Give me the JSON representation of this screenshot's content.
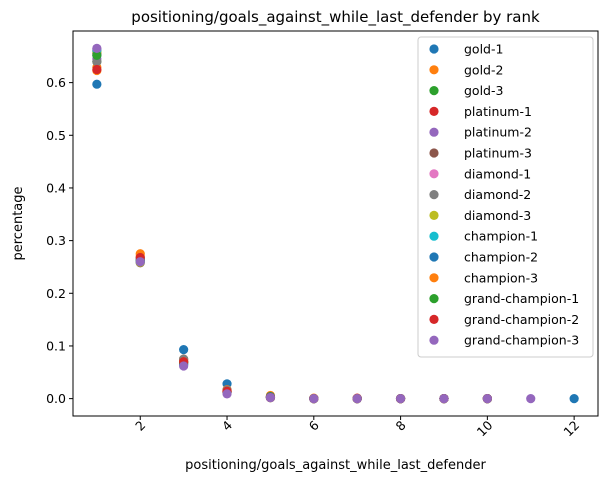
{
  "chart_data": {
    "type": "scatter",
    "title": "positioning/goals_against_while_last_defender by rank",
    "xlabel": "positioning/goals_against_while_last_defender",
    "ylabel": "percentage",
    "xlim": [
      0.45,
      12.55
    ],
    "ylim": [
      -0.033,
      0.698
    ],
    "xticks": [
      2,
      4,
      6,
      8,
      10,
      12
    ],
    "yticks": [
      0.0,
      0.1,
      0.2,
      0.3,
      0.4,
      0.5,
      0.6
    ],
    "xtick_rotation": 45,
    "grid": false,
    "legend_position": "top-right",
    "series": [
      {
        "name": "gold-1",
        "color": "#1f77b4",
        "points": [
          [
            1,
            0.597
          ],
          [
            2,
            0.268
          ],
          [
            3,
            0.093
          ],
          [
            4,
            0.028
          ],
          [
            5,
            0.004
          ],
          [
            6,
            0.0
          ],
          [
            7,
            0.0
          ],
          [
            8,
            0.0
          ],
          [
            9,
            0.0
          ],
          [
            10,
            0.0
          ]
        ]
      },
      {
        "name": "gold-2",
        "color": "#ff7f0e",
        "points": [
          [
            1,
            0.629
          ],
          [
            2,
            0.275
          ],
          [
            3,
            0.075
          ],
          [
            4,
            0.017
          ],
          [
            5,
            0.006
          ],
          [
            6,
            0.001
          ],
          [
            7,
            0.0
          ],
          [
            8,
            0.0
          ],
          [
            9,
            0.0
          ],
          [
            10,
            0.0
          ]
        ]
      },
      {
        "name": "gold-3",
        "color": "#2ca02c",
        "points": [
          [
            1,
            0.64
          ],
          [
            2,
            0.262
          ],
          [
            3,
            0.07
          ],
          [
            4,
            0.014
          ],
          [
            5,
            0.004
          ],
          [
            6,
            0.0
          ],
          [
            7,
            0.0
          ],
          [
            8,
            0.0
          ],
          [
            9,
            0.0
          ],
          [
            10,
            0.0
          ]
        ]
      },
      {
        "name": "platinum-1",
        "color": "#d62728",
        "points": [
          [
            1,
            0.655
          ],
          [
            2,
            0.26
          ],
          [
            3,
            0.068
          ],
          [
            4,
            0.013
          ],
          [
            5,
            0.003
          ],
          [
            6,
            0.0
          ],
          [
            7,
            0.001
          ],
          [
            8,
            0.0
          ],
          [
            9,
            0.0
          ],
          [
            10,
            0.0
          ]
        ]
      },
      {
        "name": "platinum-2",
        "color": "#9467bd",
        "points": [
          [
            1,
            0.645
          ],
          [
            2,
            0.262
          ],
          [
            3,
            0.07
          ],
          [
            4,
            0.015
          ],
          [
            5,
            0.003
          ],
          [
            6,
            0.0
          ],
          [
            7,
            0.0
          ],
          [
            8,
            0.0
          ],
          [
            9,
            0.0
          ],
          [
            10,
            0.0
          ]
        ]
      },
      {
        "name": "platinum-3",
        "color": "#8c564b",
        "points": [
          [
            1,
            0.66
          ],
          [
            2,
            0.258
          ],
          [
            3,
            0.072
          ],
          [
            4,
            0.012
          ],
          [
            5,
            0.003
          ],
          [
            6,
            0.0
          ],
          [
            7,
            0.0
          ],
          [
            8,
            0.0
          ],
          [
            9,
            0.0
          ],
          [
            10,
            0.0
          ]
        ]
      },
      {
        "name": "diamond-1",
        "color": "#e377c2",
        "points": [
          [
            1,
            0.664
          ],
          [
            2,
            0.261
          ],
          [
            3,
            0.065
          ],
          [
            4,
            0.011
          ],
          [
            5,
            0.002
          ],
          [
            6,
            0.0
          ],
          [
            7,
            0.0
          ],
          [
            8,
            0.0
          ],
          [
            9,
            0.0
          ],
          [
            10,
            0.0
          ]
        ]
      },
      {
        "name": "diamond-2",
        "color": "#7f7f7f",
        "points": [
          [
            1,
            0.64
          ],
          [
            2,
            0.26
          ],
          [
            3,
            0.075
          ],
          [
            4,
            0.016
          ],
          [
            5,
            0.003
          ],
          [
            6,
            0.0
          ],
          [
            7,
            0.0
          ],
          [
            8,
            0.0
          ],
          [
            9,
            0.0
          ],
          [
            10,
            0.0
          ]
        ]
      },
      {
        "name": "diamond-3",
        "color": "#bcbd22",
        "points": [
          [
            1,
            0.658
          ],
          [
            2,
            0.259
          ],
          [
            3,
            0.068
          ],
          [
            4,
            0.013
          ],
          [
            5,
            0.002
          ],
          [
            6,
            0.0
          ],
          [
            7,
            0.0
          ],
          [
            8,
            0.0
          ],
          [
            9,
            0.0
          ],
          [
            10,
            0.0
          ]
        ]
      },
      {
        "name": "champion-1",
        "color": "#17becf",
        "points": [
          [
            1,
            0.662
          ],
          [
            2,
            0.26
          ],
          [
            3,
            0.064
          ],
          [
            4,
            0.012
          ],
          [
            5,
            0.002
          ],
          [
            6,
            0.0
          ],
          [
            7,
            0.0
          ],
          [
            8,
            0.0
          ],
          [
            9,
            0.0
          ],
          [
            10,
            0.0
          ]
        ]
      },
      {
        "name": "champion-2",
        "color": "#1f77b4",
        "points": [
          [
            1,
            0.652
          ],
          [
            2,
            0.266
          ],
          [
            3,
            0.066
          ],
          [
            4,
            0.012
          ],
          [
            5,
            0.003
          ],
          [
            6,
            0.0
          ],
          [
            7,
            0.0
          ],
          [
            8,
            0.0
          ],
          [
            9,
            0.0
          ],
          [
            10,
            0.0
          ],
          [
            12,
            0.0
          ]
        ]
      },
      {
        "name": "champion-3",
        "color": "#ff7f0e",
        "points": [
          [
            1,
            0.623
          ],
          [
            2,
            0.27
          ],
          [
            3,
            0.07
          ],
          [
            4,
            0.013
          ],
          [
            5,
            0.002
          ],
          [
            6,
            0.0
          ],
          [
            7,
            0.0
          ],
          [
            8,
            0.0
          ],
          [
            9,
            0.0
          ],
          [
            10,
            0.0
          ]
        ]
      },
      {
        "name": "grand-champion-1",
        "color": "#2ca02c",
        "points": [
          [
            1,
            0.652
          ],
          [
            2,
            0.262
          ],
          [
            3,
            0.068
          ],
          [
            4,
            0.012
          ],
          [
            5,
            0.002
          ],
          [
            6,
            0.0
          ],
          [
            7,
            0.0
          ],
          [
            8,
            0.0
          ],
          [
            9,
            0.0
          ],
          [
            10,
            0.0
          ]
        ]
      },
      {
        "name": "grand-champion-2",
        "color": "#d62728",
        "points": [
          [
            1,
            0.625
          ],
          [
            2,
            0.268
          ],
          [
            3,
            0.07
          ],
          [
            4,
            0.014
          ],
          [
            5,
            0.002
          ],
          [
            6,
            0.0
          ],
          [
            7,
            0.0
          ],
          [
            8,
            0.0
          ],
          [
            9,
            0.0
          ],
          [
            10,
            0.0
          ]
        ]
      },
      {
        "name": "grand-champion-3",
        "color": "#9467bd",
        "points": [
          [
            1,
            0.665
          ],
          [
            2,
            0.26
          ],
          [
            3,
            0.062
          ],
          [
            4,
            0.009
          ],
          [
            5,
            0.002
          ],
          [
            6,
            0.0
          ],
          [
            7,
            0.0
          ],
          [
            8,
            0.0
          ],
          [
            9,
            0.0
          ],
          [
            10,
            0.0
          ],
          [
            11,
            0.0
          ]
        ]
      }
    ]
  }
}
